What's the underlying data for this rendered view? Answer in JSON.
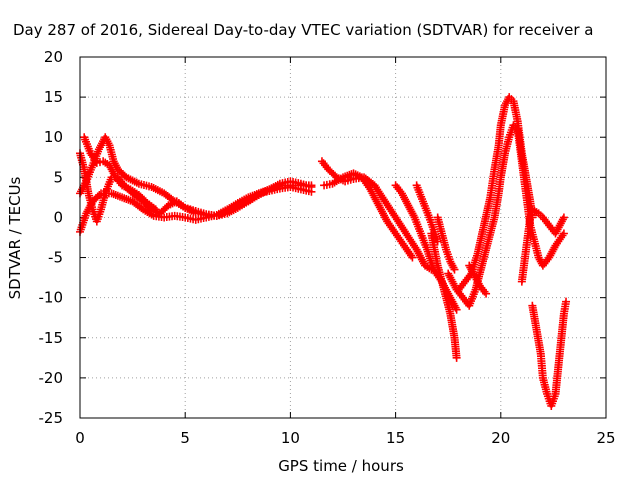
{
  "chart_data": {
    "type": "scatter",
    "title": "Day 287 of 2016, Sidereal Day-to-day VTEC variation (SDTVAR) for receiver a",
    "xlabel": "GPS time / hours",
    "ylabel": "SDTVAR / TECUs",
    "xlim": [
      0,
      25
    ],
    "ylim": [
      -25,
      20
    ],
    "xticks": [
      "0",
      "5",
      "10",
      "15",
      "20",
      "25"
    ],
    "yticks": [
      "-25",
      "-20",
      "-15",
      "-10",
      "-5",
      "0",
      "5",
      "10",
      "15",
      "20"
    ],
    "grid": true,
    "marker": "+",
    "color": "#ff0000",
    "series": [
      {
        "points": [
          [
            0.0,
            8
          ],
          [
            0.2,
            6
          ],
          [
            0.4,
            3
          ],
          [
            0.6,
            1
          ],
          [
            0.8,
            -0.5
          ],
          [
            1.0,
            1
          ],
          [
            1.2,
            3
          ],
          [
            1.5,
            5
          ],
          [
            1.8,
            5
          ],
          [
            2.1,
            4
          ],
          [
            2.5,
            3
          ],
          [
            3.0,
            2
          ],
          [
            3.4,
            1
          ],
          [
            3.8,
            0.5
          ],
          [
            4.2,
            1.5
          ],
          [
            4.6,
            2
          ],
          [
            5.0,
            1.2
          ],
          [
            5.5,
            0.8
          ],
          [
            6.0,
            0.4
          ],
          [
            6.5,
            0.2
          ],
          [
            7.0,
            0.8
          ],
          [
            7.5,
            1.5
          ],
          [
            8.0,
            2
          ],
          [
            8.5,
            3
          ],
          [
            9.0,
            3.5
          ],
          [
            9.5,
            4
          ],
          [
            10.0,
            4
          ],
          [
            10.5,
            4
          ],
          [
            11.0,
            4
          ]
        ]
      },
      {
        "points": [
          [
            0.0,
            3
          ],
          [
            0.3,
            4.5
          ],
          [
            0.6,
            6.5
          ],
          [
            0.9,
            8.5
          ],
          [
            1.2,
            10
          ],
          [
            1.4,
            9
          ],
          [
            1.6,
            7
          ],
          [
            1.8,
            6
          ],
          [
            2.2,
            5
          ],
          [
            2.8,
            4.2
          ],
          [
            3.4,
            3.8
          ],
          [
            4.0,
            3
          ],
          [
            4.5,
            2
          ],
          [
            5.0,
            1.2
          ],
          [
            5.5,
            0.6
          ],
          [
            6.0,
            0.3
          ],
          [
            6.5,
            0.2
          ],
          [
            7.0,
            0.5
          ],
          [
            7.5,
            1.2
          ],
          [
            8.0,
            2
          ],
          [
            8.5,
            2.8
          ],
          [
            9.0,
            3.5
          ],
          [
            9.5,
            4.2
          ],
          [
            10.0,
            4.5
          ],
          [
            10.5,
            4.2
          ],
          [
            11.0,
            3.8
          ]
        ]
      },
      {
        "points": [
          [
            0.0,
            -1.8
          ],
          [
            0.3,
            0.5
          ],
          [
            0.6,
            2
          ],
          [
            1.0,
            3
          ],
          [
            1.5,
            3
          ],
          [
            2.0,
            2.5
          ],
          [
            2.5,
            2
          ],
          [
            3.0,
            1
          ],
          [
            3.5,
            0.2
          ],
          [
            4.0,
            0
          ],
          [
            4.5,
            0.2
          ],
          [
            5.0,
            0
          ],
          [
            5.5,
            -0.3
          ],
          [
            6.0,
            0
          ],
          [
            6.5,
            0.3
          ],
          [
            7.0,
            1
          ],
          [
            7.5,
            1.8
          ],
          [
            8.0,
            2.5
          ],
          [
            8.5,
            3
          ],
          [
            9.0,
            3.3
          ],
          [
            9.5,
            3.6
          ],
          [
            10.0,
            3.8
          ],
          [
            10.5,
            3.5
          ],
          [
            11.0,
            3.2
          ]
        ]
      },
      {
        "points": [
          [
            0.2,
            10
          ],
          [
            0.5,
            8
          ],
          [
            0.8,
            6.8
          ],
          [
            1.1,
            7
          ],
          [
            1.4,
            6.5
          ],
          [
            1.7,
            5
          ],
          [
            2.0,
            4
          ],
          [
            2.4,
            3.5
          ],
          [
            2.8,
            2.8
          ],
          [
            3.2,
            1.8
          ],
          [
            3.6,
            1
          ]
        ]
      },
      {
        "points": [
          [
            11.5,
            7
          ],
          [
            11.8,
            6
          ],
          [
            12.2,
            5
          ],
          [
            12.6,
            4.5
          ],
          [
            13.0,
            4.8
          ],
          [
            13.5,
            5
          ],
          [
            14.0,
            4
          ],
          [
            14.5,
            2
          ],
          [
            15.0,
            0
          ],
          [
            15.5,
            -2
          ],
          [
            16.0,
            -4
          ],
          [
            16.4,
            -6
          ],
          [
            16.7,
            -6.5
          ]
        ]
      },
      {
        "points": [
          [
            11.6,
            4
          ],
          [
            12.0,
            4.2
          ],
          [
            12.5,
            5
          ],
          [
            13.0,
            5.5
          ],
          [
            13.4,
            5
          ],
          [
            13.8,
            3.5
          ],
          [
            14.2,
            1.5
          ],
          [
            14.6,
            -0.5
          ],
          [
            15.0,
            -2
          ],
          [
            15.4,
            -3.5
          ],
          [
            15.8,
            -5
          ]
        ]
      },
      {
        "points": [
          [
            15.0,
            4
          ],
          [
            15.3,
            3
          ],
          [
            15.6,
            1.5
          ],
          [
            15.9,
            0
          ],
          [
            16.2,
            -2
          ],
          [
            16.5,
            -4
          ],
          [
            16.8,
            -6.5
          ],
          [
            17.2,
            -8
          ],
          [
            17.6,
            -10
          ],
          [
            17.9,
            -11.5
          ]
        ]
      },
      {
        "points": [
          [
            16.0,
            4
          ],
          [
            16.3,
            2
          ],
          [
            16.6,
            0
          ],
          [
            16.8,
            -1.5
          ],
          [
            17.0,
            -3
          ]
        ]
      },
      {
        "points": [
          [
            16.7,
            -2
          ],
          [
            17.0,
            -6
          ],
          [
            17.3,
            -9
          ],
          [
            17.6,
            -12
          ],
          [
            17.8,
            -15
          ],
          [
            17.9,
            -17.5
          ]
        ]
      },
      {
        "points": [
          [
            17.0,
            0
          ],
          [
            17.2,
            -2
          ],
          [
            17.4,
            -4
          ],
          [
            17.6,
            -5.5
          ],
          [
            17.8,
            -6.5
          ]
        ]
      },
      {
        "points": [
          [
            17.5,
            -7
          ],
          [
            17.9,
            -9
          ],
          [
            18.2,
            -10
          ],
          [
            18.5,
            -11
          ],
          [
            18.8,
            -9
          ],
          [
            19.1,
            -6
          ],
          [
            19.4,
            -3
          ],
          [
            19.7,
            0
          ],
          [
            19.9,
            3
          ],
          [
            20.0,
            5
          ],
          [
            20.2,
            8
          ],
          [
            20.4,
            10
          ],
          [
            20.6,
            11.5
          ],
          [
            20.8,
            11
          ],
          [
            21.0,
            7
          ],
          [
            21.2,
            3
          ],
          [
            21.4,
            -1
          ],
          [
            21.6,
            -3
          ],
          [
            21.8,
            -5
          ],
          [
            22.0,
            -6
          ],
          [
            22.3,
            -5
          ],
          [
            22.6,
            -3.5
          ],
          [
            23.0,
            -2
          ]
        ]
      },
      {
        "points": [
          [
            18.0,
            -9
          ],
          [
            18.3,
            -8
          ],
          [
            18.6,
            -7
          ],
          [
            18.9,
            -4.5
          ],
          [
            19.2,
            -1
          ],
          [
            19.5,
            2.5
          ],
          [
            19.7,
            6
          ],
          [
            19.9,
            9
          ],
          [
            20.0,
            11.5
          ],
          [
            20.2,
            14
          ],
          [
            20.4,
            15
          ],
          [
            20.6,
            14.5
          ],
          [
            20.8,
            12
          ],
          [
            21.0,
            8
          ],
          [
            21.2,
            5
          ],
          [
            21.4,
            2
          ],
          [
            21.5,
            0
          ]
        ]
      },
      {
        "points": [
          [
            18.5,
            -6
          ],
          [
            18.8,
            -7.5
          ],
          [
            19.0,
            -8.5
          ],
          [
            19.3,
            -9.5
          ]
        ]
      },
      {
        "points": [
          [
            21.0,
            -8
          ],
          [
            21.2,
            -4
          ],
          [
            21.4,
            0
          ],
          [
            21.5,
            1
          ],
          [
            21.8,
            0.5
          ],
          [
            22.0,
            0
          ],
          [
            22.3,
            -1
          ],
          [
            22.6,
            -2
          ],
          [
            23.0,
            0
          ]
        ]
      },
      {
        "points": [
          [
            21.5,
            -11
          ],
          [
            21.7,
            -14
          ],
          [
            21.9,
            -17
          ],
          [
            22.0,
            -20
          ],
          [
            22.2,
            -22
          ],
          [
            22.4,
            -23.5
          ],
          [
            22.6,
            -22
          ],
          [
            22.8,
            -17
          ],
          [
            23.0,
            -12
          ],
          [
            23.1,
            -10.5
          ]
        ]
      }
    ]
  }
}
